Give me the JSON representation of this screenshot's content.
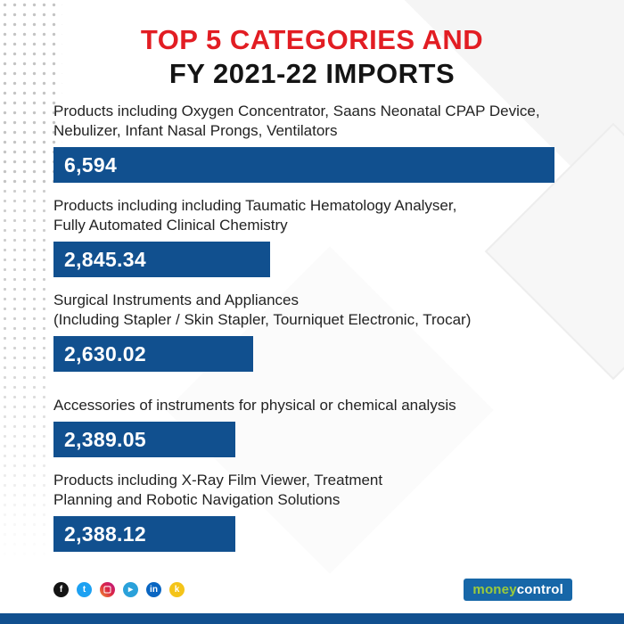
{
  "title": {
    "line1": "TOP 5 CATEGORIES AND",
    "line2": "FY 2021-22 IMPORTS"
  },
  "chart_data": {
    "type": "bar",
    "orientation": "horizontal",
    "title": "TOP 5 CATEGORIES AND FY 2021-22 IMPORTS",
    "categories": [
      "Products including Oxygen Concentrator, Saans Neonatal CPAP Device, Nebulizer, Infant Nasal Prongs, Ventilators",
      "Products including including Taumatic Hematology Analyser, Fully Automated Clinical Chemistry",
      "Surgical Instruments and Appliances (Including Stapler / Skin Stapler, Tourniquet Electronic, Trocar)",
      "Accessories of instruments for physical or chemical analysis",
      "Products including X-Ray Film Viewer, Treatment Planning and Robotic Navigation Solutions"
    ],
    "category_lines": [
      [
        "Products including Oxygen Concentrator, Saans Neonatal CPAP Device,",
        "Nebulizer, Infant Nasal Prongs, Ventilators"
      ],
      [
        "Products including including Taumatic Hematology Analyser,",
        "Fully Automated Clinical Chemistry"
      ],
      [
        "Surgical Instruments and Appliances",
        "(Including Stapler / Skin Stapler, Tourniquet Electronic, Trocar)"
      ],
      [
        "Accessories of instruments for physical or chemical analysis"
      ],
      [
        "Products including X-Ray Film Viewer, Treatment",
        "Planning and Robotic Navigation Solutions"
      ]
    ],
    "values": [
      6594,
      2845.34,
      2630.02,
      2389.05,
      2388.12
    ],
    "value_labels": [
      "6,594",
      "2,845.34",
      "2,630.02",
      "2,389.05",
      "2,388.12"
    ],
    "xlim": [
      0,
      6594
    ],
    "grid": false,
    "legend": false,
    "bar_color": "#11508f",
    "value_label_color": "#ffffff"
  },
  "footer": {
    "social": [
      {
        "name": "facebook-icon",
        "glyph": "f",
        "bg": "#141414"
      },
      {
        "name": "twitter-icon",
        "glyph": "t",
        "bg": "#1da1f2"
      },
      {
        "name": "instagram-icon",
        "glyph": "▢",
        "bg": "linear-gradient(45deg,#f09433,#dc2743,#bc1888)"
      },
      {
        "name": "telegram-icon",
        "glyph": "▸",
        "bg": "#2aa1da"
      },
      {
        "name": "linkedin-icon",
        "glyph": "in",
        "bg": "#0a66c2"
      },
      {
        "name": "koo-icon",
        "glyph": "k",
        "bg": "#f4c419"
      }
    ],
    "logo": {
      "part1": "money",
      "part2": "control",
      "bg_color": "#1767a8",
      "part1_color": "#9ccb3b",
      "part2_color": "#ffffff"
    }
  },
  "colors": {
    "accent_red": "#e21d23",
    "title_black": "#141414",
    "bar_blue": "#11508f",
    "bottom_strip_blue": "#11508f"
  }
}
